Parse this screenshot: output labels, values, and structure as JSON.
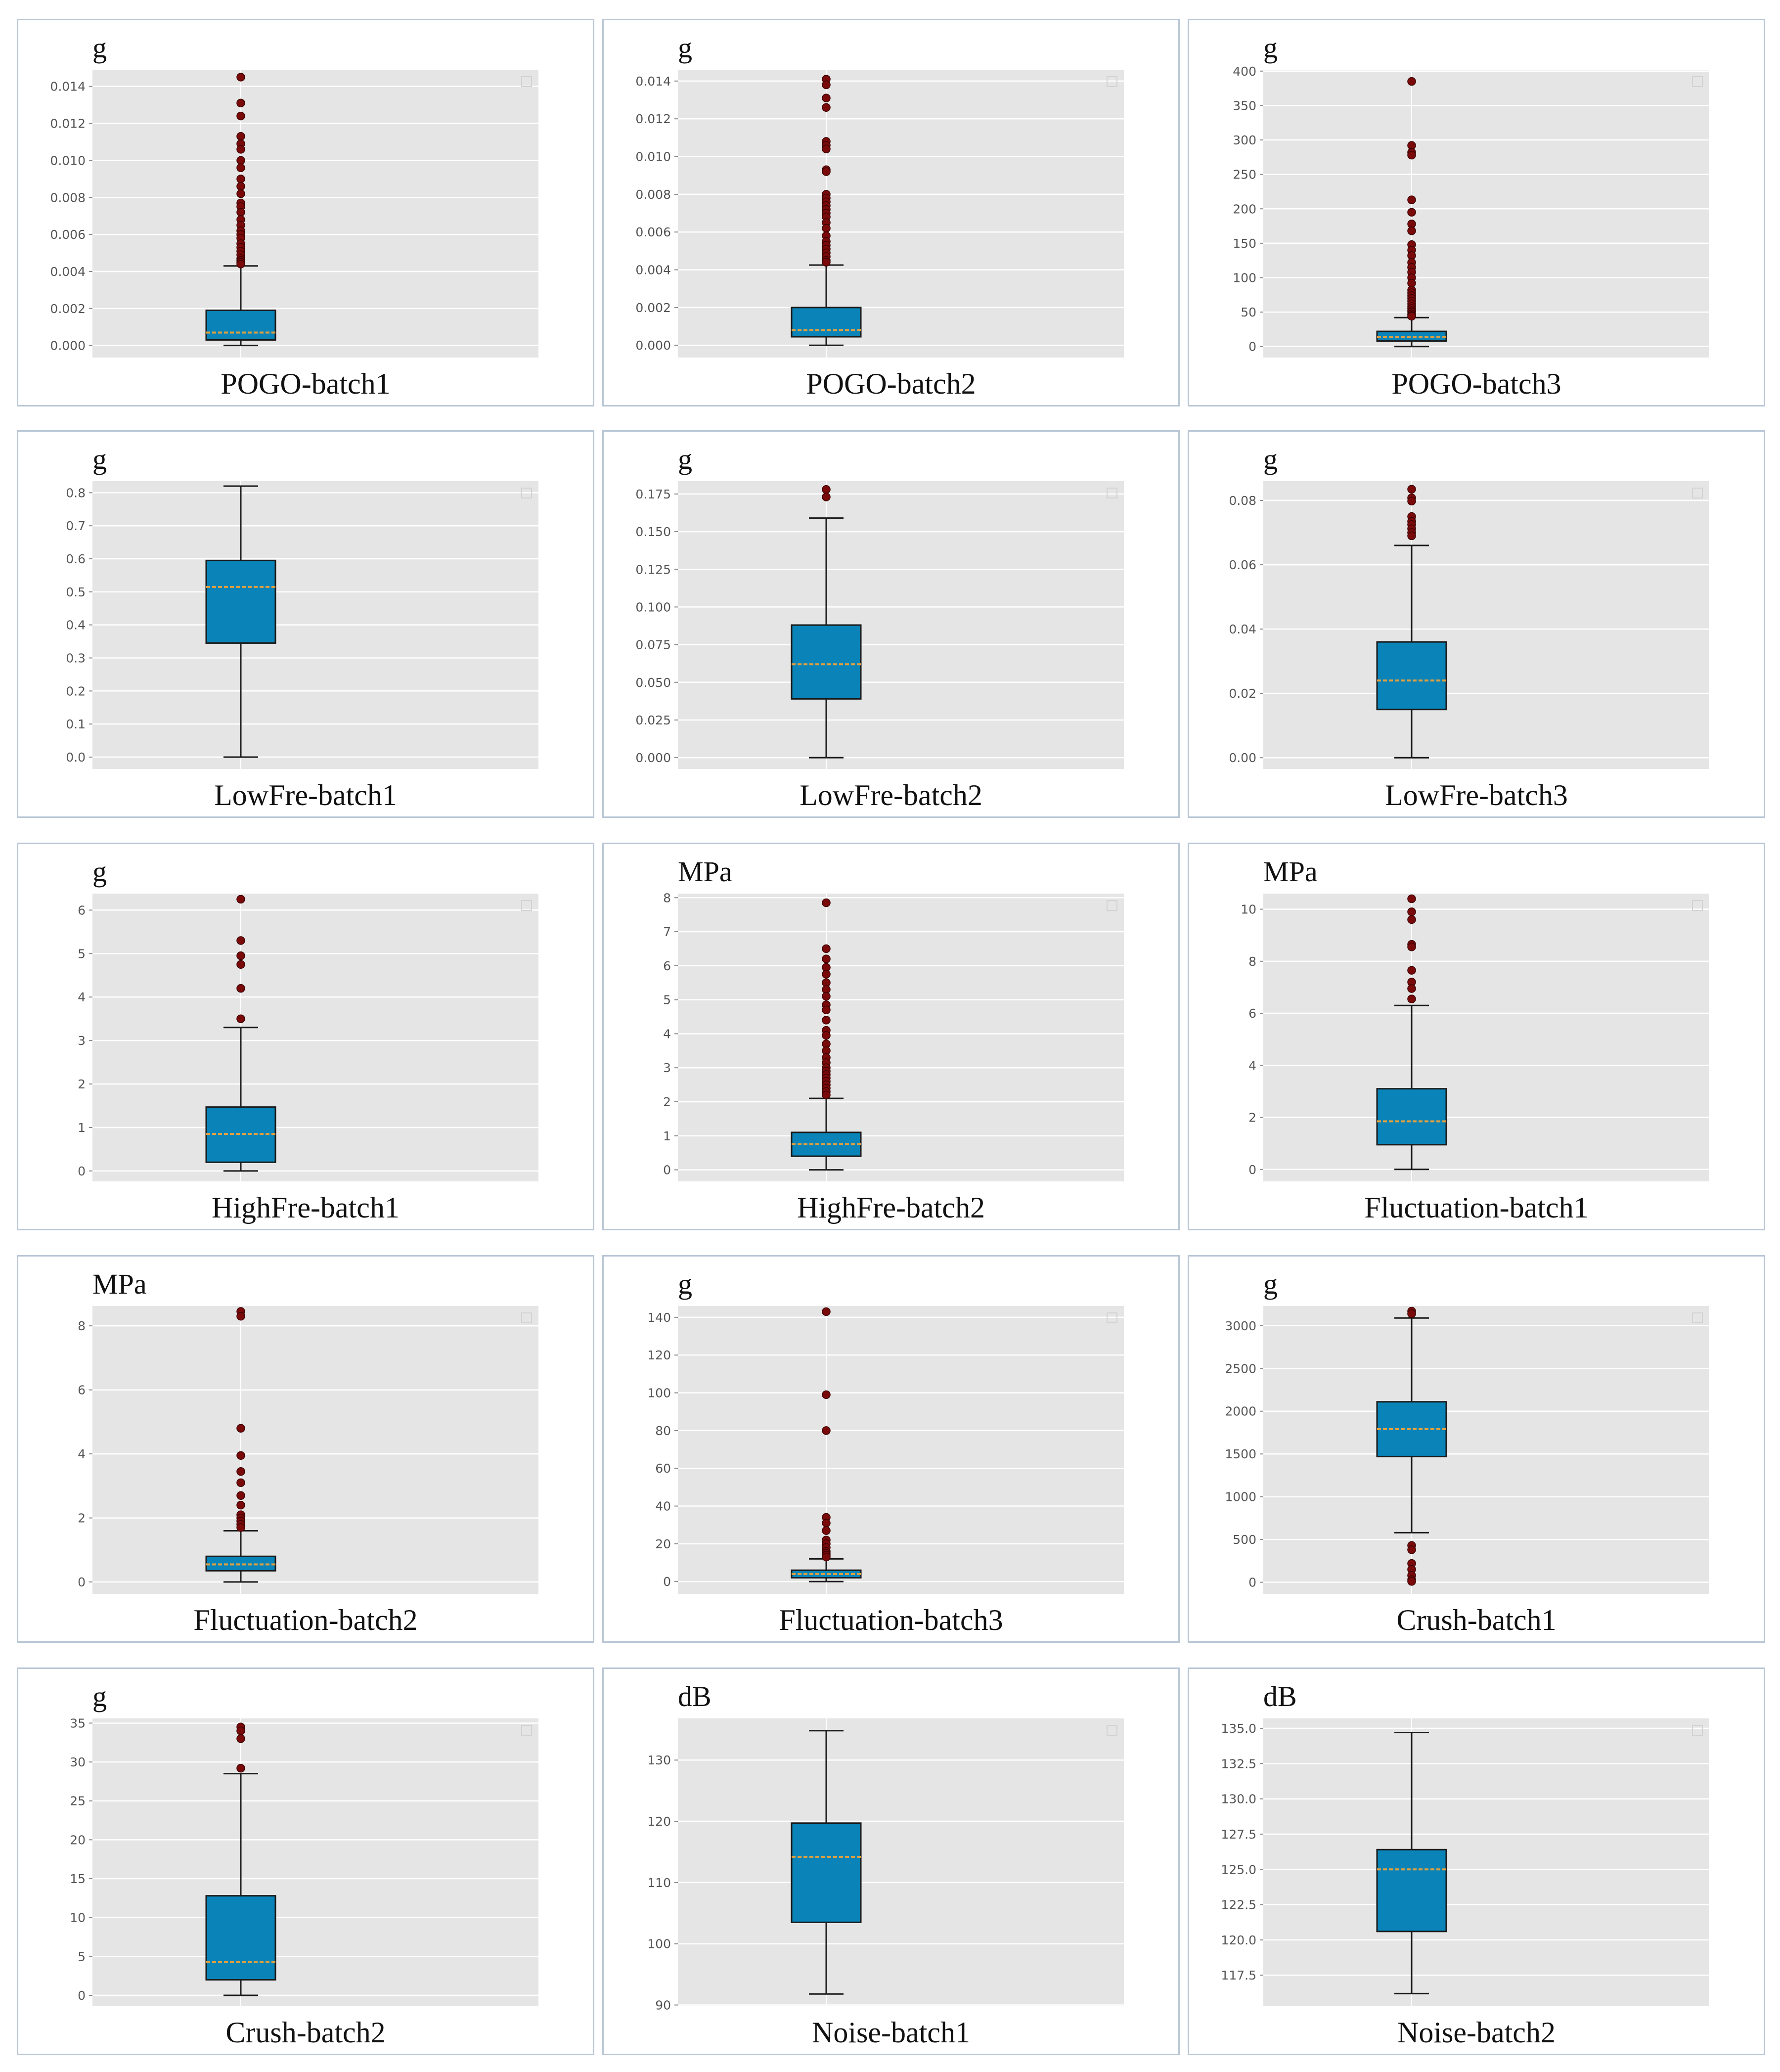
{
  "figure": {
    "layout": "5 rows x 3 columns grid of box plots",
    "palette": {
      "plot_bg": "#e5e5e5",
      "grid": "#ffffff",
      "box_fill": "#0a84b8",
      "box_edge": "#1a1a1a",
      "median": "#e0a040",
      "whisker": "#1a1a1a",
      "outlier": "#7a0a0a"
    }
  },
  "chart_data": [
    {
      "type": "box",
      "title": "POGO-batch1",
      "unit": "g",
      "yticks": [
        0.0,
        0.002,
        0.004,
        0.006,
        0.008,
        0.01,
        0.012,
        0.014
      ],
      "tick_labels": [
        "0.000",
        "0.002",
        "0.004",
        "0.006",
        "0.008",
        "0.010",
        "0.012",
        "0.014"
      ],
      "ylim": [
        -0.00065,
        0.0149
      ],
      "box": {
        "whisker_low": 0.0,
        "q1": 0.0003,
        "median": 0.0007,
        "q3": 0.0019,
        "whisker_high": 0.0043
      },
      "outliers": [
        0.0145,
        0.0131,
        0.0124,
        0.0113,
        0.0109,
        0.0106,
        0.01,
        0.0096,
        0.009,
        0.0086,
        0.0082,
        0.0077,
        0.0075,
        0.0072,
        0.0068,
        0.0065,
        0.0062,
        0.006,
        0.0058,
        0.0055,
        0.0053,
        0.0051,
        0.0049,
        0.0047,
        0.0046,
        0.0045,
        0.0044
      ]
    },
    {
      "type": "box",
      "title": "POGO-batch2",
      "unit": "g",
      "yticks": [
        0.0,
        0.002,
        0.004,
        0.006,
        0.008,
        0.01,
        0.012,
        0.014
      ],
      "tick_labels": [
        "0.000",
        "0.002",
        "0.004",
        "0.006",
        "0.008",
        "0.010",
        "0.012",
        "0.014"
      ],
      "ylim": [
        -0.00065,
        0.0146
      ],
      "box": {
        "whisker_low": 0.0,
        "q1": 0.00045,
        "median": 0.0008,
        "q3": 0.002,
        "whisker_high": 0.00425
      },
      "outliers": [
        0.0141,
        0.0138,
        0.0131,
        0.0126,
        0.0108,
        0.0106,
        0.0104,
        0.0093,
        0.0092,
        0.008,
        0.0078,
        0.0076,
        0.0074,
        0.0072,
        0.007,
        0.0068,
        0.0065,
        0.0062,
        0.0058,
        0.0055,
        0.0053,
        0.0051,
        0.0049,
        0.0047,
        0.0045,
        0.0044
      ]
    },
    {
      "type": "box",
      "title": "POGO-batch3",
      "unit": "g",
      "yticks": [
        0,
        50,
        100,
        150,
        200,
        250,
        300,
        350,
        400
      ],
      "tick_labels": [
        "0",
        "50",
        "100",
        "150",
        "200",
        "250",
        "300",
        "350",
        "400"
      ],
      "ylim": [
        -16,
        402
      ],
      "box": {
        "whisker_low": 0,
        "q1": 8,
        "median": 14,
        "q3": 22,
        "whisker_high": 42
      },
      "outliers": [
        385,
        292,
        282,
        278,
        213,
        195,
        178,
        168,
        148,
        140,
        132,
        122,
        115,
        108,
        100,
        92,
        82,
        78,
        74,
        70,
        66,
        62,
        58,
        55,
        52,
        50,
        47,
        45,
        44
      ]
    },
    {
      "type": "box",
      "title": "LowFre-batch1",
      "unit": "g",
      "yticks": [
        0.0,
        0.1,
        0.2,
        0.3,
        0.4,
        0.5,
        0.6,
        0.7,
        0.8
      ],
      "tick_labels": [
        "0.0",
        "0.1",
        "0.2",
        "0.3",
        "0.4",
        "0.5",
        "0.6",
        "0.7",
        "0.8"
      ],
      "ylim": [
        -0.036,
        0.835
      ],
      "box": {
        "whisker_low": 0.0,
        "q1": 0.345,
        "median": 0.515,
        "q3": 0.595,
        "whisker_high": 0.82
      },
      "outliers": []
    },
    {
      "type": "box",
      "title": "LowFre-batch2",
      "unit": "g",
      "yticks": [
        0.0,
        0.025,
        0.05,
        0.075,
        0.1,
        0.125,
        0.15,
        0.175
      ],
      "tick_labels": [
        "0.000",
        "0.025",
        "0.050",
        "0.075",
        "0.100",
        "0.125",
        "0.150",
        "0.175"
      ],
      "ylim": [
        -0.0075,
        0.1835
      ],
      "box": {
        "whisker_low": 0.0,
        "q1": 0.039,
        "median": 0.062,
        "q3": 0.088,
        "whisker_high": 0.159
      },
      "outliers": [
        0.178,
        0.173
      ]
    },
    {
      "type": "box",
      "title": "LowFre-batch3",
      "unit": "g",
      "yticks": [
        0.0,
        0.02,
        0.04,
        0.06,
        0.08
      ],
      "tick_labels": [
        "0.00",
        "0.02",
        "0.04",
        "0.06",
        "0.08"
      ],
      "ylim": [
        -0.0035,
        0.086
      ],
      "box": {
        "whisker_low": 0.0,
        "q1": 0.015,
        "median": 0.024,
        "q3": 0.036,
        "whisker_high": 0.066
      },
      "outliers": [
        0.0835,
        0.0808,
        0.0798,
        0.075,
        0.0735,
        0.0725,
        0.0712,
        0.07,
        0.069
      ]
    },
    {
      "type": "box",
      "title": "HighFre-batch1",
      "unit": "g",
      "yticks": [
        0,
        1,
        2,
        3,
        4,
        5,
        6
      ],
      "tick_labels": [
        "0",
        "1",
        "2",
        "3",
        "4",
        "5",
        "6"
      ],
      "ylim": [
        -0.24,
        6.38
      ],
      "box": {
        "whisker_low": 0.0,
        "q1": 0.2,
        "median": 0.85,
        "q3": 1.47,
        "whisker_high": 3.3
      },
      "outliers": [
        6.25,
        5.3,
        4.95,
        4.75,
        4.2,
        3.5
      ]
    },
    {
      "type": "box",
      "title": "HighFre-batch2",
      "unit": "MPa",
      "yticks": [
        0,
        1,
        2,
        3,
        4,
        5,
        6,
        7,
        8
      ],
      "tick_labels": [
        "0",
        "1",
        "2",
        "3",
        "4",
        "5",
        "6",
        "7",
        "8"
      ],
      "ylim": [
        -0.34,
        8.12
      ],
      "box": {
        "whisker_low": 0.0,
        "q1": 0.4,
        "median": 0.75,
        "q3": 1.1,
        "whisker_high": 2.1
      },
      "outliers": [
        7.85,
        6.5,
        6.2,
        5.95,
        5.75,
        5.5,
        5.3,
        5.1,
        4.85,
        4.7,
        4.4,
        4.1,
        3.95,
        3.7,
        3.5,
        3.3,
        3.15,
        3.0,
        2.9,
        2.8,
        2.7,
        2.6,
        2.5,
        2.4,
        2.3,
        2.2
      ]
    },
    {
      "type": "box",
      "title": "Fluctuation-batch1",
      "unit": "MPa",
      "yticks": [
        0,
        2,
        4,
        6,
        8,
        10
      ],
      "tick_labels": [
        "0",
        "2",
        "4",
        "6",
        "8",
        "10"
      ],
      "ylim": [
        -0.46,
        10.6
      ],
      "box": {
        "whisker_low": 0.0,
        "q1": 0.95,
        "median": 1.85,
        "q3": 3.1,
        "whisker_high": 6.3
      },
      "outliers": [
        10.4,
        9.9,
        9.6,
        8.65,
        8.55,
        7.65,
        7.2,
        6.95,
        6.55
      ]
    },
    {
      "type": "box",
      "title": "Fluctuation-batch2",
      "unit": "MPa",
      "yticks": [
        0,
        2,
        4,
        6,
        8
      ],
      "tick_labels": [
        "0",
        "2",
        "4",
        "6",
        "8"
      ],
      "ylim": [
        -0.37,
        8.62
      ],
      "box": {
        "whisker_low": 0.0,
        "q1": 0.35,
        "median": 0.55,
        "q3": 0.8,
        "whisker_high": 1.6
      },
      "outliers": [
        8.45,
        8.3,
        4.8,
        3.95,
        3.45,
        3.1,
        2.7,
        2.4,
        2.1,
        2.0,
        1.9,
        1.8,
        1.7
      ]
    },
    {
      "type": "box",
      "title": "Fluctuation-batch3",
      "unit": "g",
      "yticks": [
        0,
        20,
        40,
        60,
        80,
        100,
        120,
        140
      ],
      "tick_labels": [
        "0",
        "20",
        "40",
        "60",
        "80",
        "100",
        "120",
        "140"
      ],
      "ylim": [
        -6.5,
        146
      ],
      "box": {
        "whisker_low": 0,
        "q1": 2,
        "median": 4,
        "q3": 6,
        "whisker_high": 12
      },
      "outliers": [
        143,
        99,
        80,
        34,
        31,
        27,
        22,
        20,
        18,
        16,
        15,
        14,
        13
      ]
    },
    {
      "type": "box",
      "title": "Crush-batch1",
      "unit": "g",
      "yticks": [
        0,
        500,
        1000,
        1500,
        2000,
        2500,
        3000
      ],
      "tick_labels": [
        "0",
        "500",
        "1000",
        "1500",
        "2000",
        "2500",
        "3000"
      ],
      "ylim": [
        -135,
        3230
      ],
      "box": {
        "whisker_low": 580,
        "q1": 1470,
        "median": 1790,
        "q3": 2110,
        "whisker_high": 3090
      },
      "outliers": [
        3170,
        3140,
        430,
        380,
        220,
        150,
        80,
        30,
        10
      ]
    },
    {
      "type": "box",
      "title": "Crush-batch2",
      "unit": "g",
      "yticks": [
        0,
        5,
        10,
        15,
        20,
        25,
        30,
        35
      ],
      "tick_labels": [
        "0",
        "5",
        "10",
        "15",
        "20",
        "25",
        "30",
        "35"
      ],
      "ylim": [
        -1.4,
        35.6
      ],
      "box": {
        "whisker_low": 0.0,
        "q1": 2.0,
        "median": 4.3,
        "q3": 12.8,
        "whisker_high": 28.5
      },
      "outliers": [
        34.5,
        34.0,
        33.0,
        29.2
      ]
    },
    {
      "type": "box",
      "title": "Noise-batch1",
      "unit": "dB",
      "yticks": [
        90,
        100,
        110,
        120,
        130
      ],
      "tick_labels": [
        "90",
        "100",
        "110",
        "120",
        "130"
      ],
      "ylim": [
        89.8,
        136.8
      ],
      "box": {
        "whisker_low": 91.8,
        "q1": 103.5,
        "median": 114.2,
        "q3": 119.7,
        "whisker_high": 134.8
      },
      "outliers": []
    },
    {
      "type": "box",
      "title": "Noise-batch2",
      "unit": "dB",
      "yticks": [
        117.5,
        120.0,
        122.5,
        125.0,
        127.5,
        130.0,
        132.5,
        135.0
      ],
      "tick_labels": [
        "117.5",
        "120.0",
        "122.5",
        "125.0",
        "127.5",
        "130.0",
        "132.5",
        "135.0"
      ],
      "ylim": [
        115.3,
        135.7
      ],
      "box": {
        "whisker_low": 116.2,
        "q1": 120.6,
        "median": 125.0,
        "q3": 126.4,
        "whisker_high": 134.7
      },
      "outliers": []
    }
  ]
}
